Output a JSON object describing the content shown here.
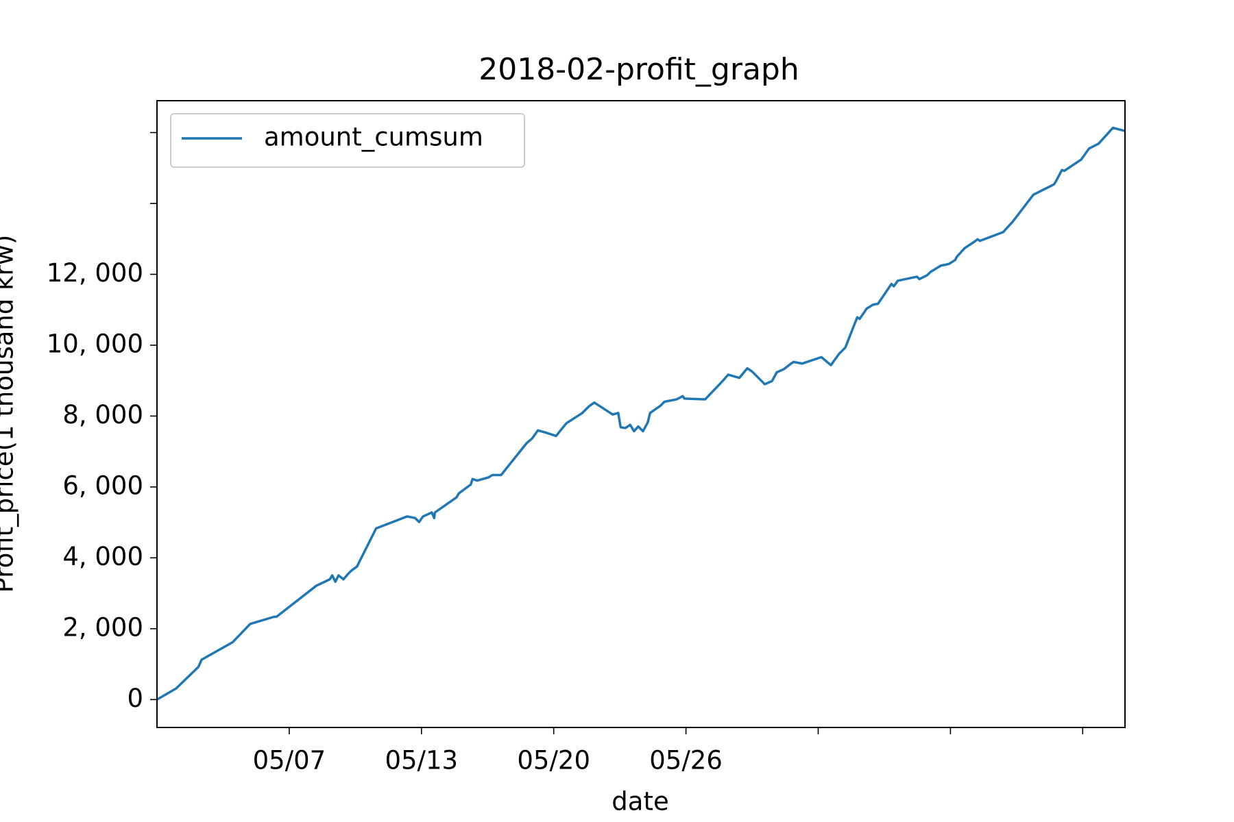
{
  "chart_data": {
    "type": "line",
    "title": "2018-02-profit_graph",
    "x_label": "date",
    "y_label": "Profit_price(1 thousand krw)",
    "x": [
      0,
      0.145,
      0.313,
      0.337,
      0.572,
      0.705,
      0.886,
      0.904,
      1.205,
      1.307,
      1.325,
      1.349,
      1.373,
      1.41,
      1.446,
      1.47,
      1.512,
      1.657,
      1.892,
      1.952,
      1.982,
      2.012,
      2.078,
      2.096,
      2.102,
      2.265,
      2.283,
      2.373,
      2.386,
      2.422,
      2.506,
      2.536,
      2.602,
      2.795,
      2.837,
      2.88,
      2.946,
      3.018,
      3.066,
      3.096,
      3.217,
      3.265,
      3.307,
      3.446,
      3.488,
      3.506,
      3.542,
      3.578,
      3.608,
      3.639,
      3.675,
      3.711,
      3.729,
      3.807,
      3.837,
      3.928,
      3.976,
      3.988,
      4.145,
      4.277,
      4.319,
      4.404,
      4.464,
      4.5,
      4.596,
      4.651,
      4.687,
      4.741,
      4.795,
      4.813,
      4.88,
      5.024,
      5.096,
      5.157,
      5.205,
      5.295,
      5.313,
      5.367,
      5.416,
      5.452,
      5.554,
      5.572,
      5.602,
      5.747,
      5.765,
      5.825,
      5.849,
      5.928,
      5.988,
      6.036,
      6.048,
      6.108,
      6.181,
      6.205,
      6.223,
      6.398,
      6.47,
      6.627,
      6.783,
      6.795,
      6.843,
      6.861,
      6.988,
      7.048,
      7.12,
      7.229,
      7.319
    ],
    "series": [
      {
        "name": "amount_cumsum",
        "color": "#1f77b4",
        "values": [
          0,
          315,
          921,
          1124,
          1618,
          2135,
          2337,
          2337,
          3213,
          3393,
          3505,
          3326,
          3505,
          3393,
          3550,
          3640,
          3752,
          4831,
          5168,
          5123,
          5011,
          5168,
          5280,
          5123,
          5280,
          5707,
          5820,
          6067,
          6224,
          6179,
          6269,
          6336,
          6336,
          7235,
          7369,
          7595,
          7527,
          7438,
          7662,
          7797,
          8089,
          8269,
          8381,
          8044,
          8089,
          7685,
          7662,
          7752,
          7572,
          7707,
          7572,
          7820,
          8089,
          8291,
          8404,
          8471,
          8561,
          8494,
          8471,
          8988,
          9168,
          9078,
          9348,
          9258,
          8898,
          8988,
          9235,
          9325,
          9482,
          9527,
          9482,
          9663,
          9437,
          9752,
          9932,
          10786,
          10741,
          11033,
          11146,
          11168,
          11729,
          11662,
          11819,
          11932,
          11864,
          11977,
          12066,
          12246,
          12291,
          12404,
          12493,
          12740,
          12920,
          12988,
          12943,
          13190,
          13482,
          14246,
          14538,
          14606,
          14943,
          14920,
          15235,
          15549,
          15684,
          16134,
          16044
        ]
      }
    ],
    "xlim": [
      0,
      7.32
    ],
    "xticks": [
      {
        "value": 1,
        "label": "05/07"
      },
      {
        "value": 2,
        "label": "05/13"
      },
      {
        "value": 3,
        "label": "05/20"
      },
      {
        "value": 4,
        "label": "05/26"
      },
      {
        "value": 5,
        "label": null
      },
      {
        "value": 6,
        "label": null
      },
      {
        "value": 7,
        "label": null
      }
    ],
    "ylim": [
      -787,
      16899
    ],
    "yticks": [
      0,
      {
        "value": 2000,
        "label": "2, 000"
      },
      {
        "value": 4000,
        "label": "4, 000"
      },
      {
        "value": 6000,
        "label": "6, 000"
      },
      {
        "value": 8000,
        "label": "8, 000"
      },
      {
        "value": 10000,
        "label": "10, 000"
      },
      {
        "value": 12000,
        "label": "12, 000"
      },
      {
        "value": 14000,
        "label": null
      },
      {
        "value": 16000,
        "label": null
      }
    ],
    "legend": "upper left",
    "grid": false
  }
}
